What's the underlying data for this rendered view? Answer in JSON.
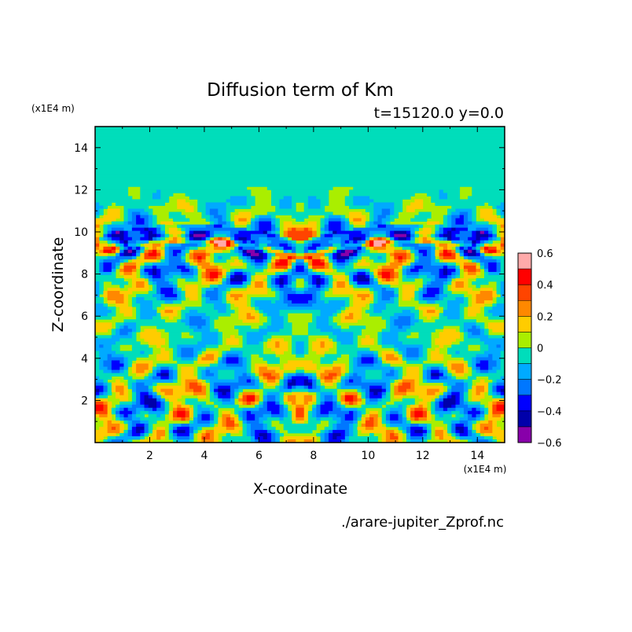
{
  "chart_data": {
    "type": "heatmap",
    "title": "Diffusion term of Km",
    "subtitle": "t=15120.0 y=0.0",
    "xlabel": "X-coordinate",
    "ylabel": "Z-coordinate",
    "x_unit": "(x1E4 m)",
    "y_unit": "(x1E4 m)",
    "source": "./arare-jupiter_Zprof.nc",
    "xlim": [
      0,
      15
    ],
    "ylim": [
      0,
      15
    ],
    "x_ticks": [
      "2",
      "4",
      "6",
      "8",
      "10",
      "12",
      "14"
    ],
    "y_ticks": [
      "2",
      "4",
      "6",
      "8",
      "10",
      "12",
      "14"
    ],
    "colorbar": {
      "levels": [
        -0.6,
        -0.5,
        -0.4,
        -0.3,
        -0.2,
        -0.1,
        0,
        0.1,
        0.2,
        0.3,
        0.4,
        0.5,
        0.6
      ],
      "colors": [
        "#8800aa",
        "#0000aa",
        "#0000ff",
        "#0077ff",
        "#00aaff",
        "#00ddbb",
        "#aaee00",
        "#ffcc00",
        "#ff8800",
        "#ff4400",
        "#ff0000",
        "#ffaaaa"
      ],
      "tick_labels": [
        "0.6",
        "0.4",
        "0.2",
        "0",
        "−0.2",
        "−0.4",
        "−0.6"
      ]
    },
    "background_color": "#aaee00"
  }
}
